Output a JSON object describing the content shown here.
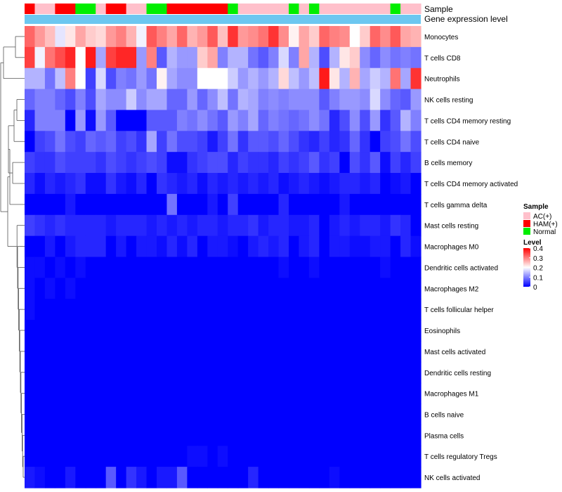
{
  "chart_data": {
    "type": "heatmap",
    "title": "",
    "annotation_labels": {
      "sample": "Sample",
      "gene": "Gene expression level"
    },
    "legend_sample": {
      "title": "Sample",
      "items": [
        "AC(+)",
        "HAM(+)",
        "Normal"
      ],
      "colors": {
        "AC(+)": "#FFC0CB",
        "HAM(+)": "#FF0000",
        "Normal": "#00EE00"
      }
    },
    "legend_level": {
      "title": "Level",
      "ticks": [
        0.4,
        0.3,
        0.2,
        0.1,
        0
      ],
      "range": [
        0,
        0.4
      ],
      "colors": [
        "#0000FF",
        "#FFFFFF",
        "#FF0000"
      ]
    },
    "gene_bar_color": "#6CC7F0",
    "sample_groups": [
      "HAM(+)",
      "AC(+)",
      "AC(+)",
      "HAM(+)",
      "HAM(+)",
      "Normal",
      "Normal",
      "AC(+)",
      "HAM(+)",
      "HAM(+)",
      "AC(+)",
      "AC(+)",
      "Normal",
      "Normal",
      "HAM(+)",
      "HAM(+)",
      "HAM(+)",
      "HAM(+)",
      "HAM(+)",
      "HAM(+)",
      "Normal",
      "AC(+)",
      "AC(+)",
      "AC(+)",
      "AC(+)",
      "AC(+)",
      "Normal",
      "AC(+)",
      "Normal",
      "AC(+)",
      "AC(+)",
      "AC(+)",
      "AC(+)",
      "AC(+)",
      "AC(+)",
      "AC(+)",
      "Normal",
      "AC(+)",
      "AC(+)"
    ],
    "rows": [
      "Monocytes",
      "T cells CD8",
      "Neutrophils",
      "NK cells resting",
      "T cells CD4 memory resting",
      "T cells CD4 naive",
      "B cells memory",
      "T cells CD4 memory activated",
      "T cells gamma delta",
      "Mast cells resting",
      "Macrophages M0",
      "Dendritic cells activated",
      "Macrophages M2",
      "T cells follicular helper",
      "Eosinophils",
      "Mast cells activated",
      "Dendritic cells resting",
      "Macrophages M1",
      "B cells naive",
      "Plasma cells",
      "T cells regulatory  Tregs",
      "NK cells activated"
    ],
    "values": [
      [
        0.32,
        0.28,
        0.25,
        0.18,
        0.22,
        0.27,
        0.24,
        0.23,
        0.28,
        0.3,
        0.26,
        0.19,
        0.33,
        0.3,
        0.27,
        0.32,
        0.26,
        0.28,
        0.33,
        0.25,
        0.36,
        0.28,
        0.29,
        0.31,
        0.36,
        0.29,
        0.21,
        0.27,
        0.24,
        0.32,
        0.3,
        0.29,
        0.2,
        0.24,
        0.32,
        0.29,
        0.33,
        0.27,
        0.26
      ],
      [
        0.35,
        0.19,
        0.31,
        0.34,
        0.37,
        0.2,
        0.38,
        0.13,
        0.35,
        0.37,
        0.37,
        0.12,
        0.3,
        0.07,
        0.14,
        0.12,
        0.12,
        0.24,
        0.27,
        0.1,
        0.14,
        0.14,
        0.09,
        0.07,
        0.1,
        0.17,
        0.1,
        0.27,
        0.14,
        0.06,
        0.14,
        0.22,
        0.24,
        0.11,
        0.08,
        0.11,
        0.09,
        0.1,
        0.09
      ],
      [
        0.14,
        0.14,
        0.09,
        0.15,
        0.3,
        0.2,
        0.05,
        0.17,
        0.06,
        0.1,
        0.09,
        0.12,
        0.09,
        0.21,
        0.13,
        0.11,
        0.11,
        0.2,
        0.2,
        0.2,
        0.16,
        0.12,
        0.14,
        0.12,
        0.14,
        0.23,
        0.15,
        0.12,
        0.15,
        0.38,
        0.22,
        0.14,
        0.26,
        0.13,
        0.16,
        0.14,
        0.31,
        0.13,
        0.36
      ],
      [
        0.08,
        0.1,
        0.1,
        0.08,
        0.06,
        0.1,
        0.06,
        0.13,
        0.11,
        0.11,
        0.16,
        0.11,
        0.13,
        0.13,
        0.08,
        0.08,
        0.12,
        0.08,
        0.11,
        0.15,
        0.09,
        0.14,
        0.13,
        0.1,
        0.11,
        0.1,
        0.11,
        0.11,
        0.11,
        0.07,
        0.1,
        0.12,
        0.12,
        0.11,
        0.17,
        0.11,
        0.08,
        0.07,
        0.12
      ],
      [
        0.03,
        0.1,
        0.1,
        0.1,
        0.0,
        0.12,
        0.01,
        0.12,
        0.07,
        0.0,
        0.0,
        0.0,
        0.07,
        0.07,
        0.07,
        0.1,
        0.09,
        0.11,
        0.09,
        0.07,
        0.12,
        0.1,
        0.13,
        0.08,
        0.1,
        0.09,
        0.08,
        0.09,
        0.11,
        0.09,
        0.03,
        0.06,
        0.11,
        0.06,
        0.12,
        0.04,
        0.07,
        0.14,
        0.1
      ],
      [
        0.0,
        0.05,
        0.06,
        0.09,
        0.06,
        0.05,
        0.08,
        0.07,
        0.08,
        0.05,
        0.06,
        0.04,
        0.13,
        0.05,
        0.09,
        0.06,
        0.06,
        0.05,
        0.02,
        0.05,
        0.09,
        0.04,
        0.07,
        0.07,
        0.06,
        0.08,
        0.06,
        0.04,
        0.03,
        0.05,
        0.03,
        0.04,
        0.08,
        0.04,
        0.0,
        0.05,
        0.06,
        0.09,
        0.06
      ],
      [
        0.05,
        0.04,
        0.04,
        0.06,
        0.05,
        0.05,
        0.05,
        0.04,
        0.06,
        0.05,
        0.04,
        0.05,
        0.06,
        0.05,
        0.01,
        0.01,
        0.04,
        0.05,
        0.06,
        0.06,
        0.03,
        0.05,
        0.04,
        0.04,
        0.03,
        0.05,
        0.04,
        0.05,
        0.07,
        0.04,
        0.05,
        0.0,
        0.06,
        0.04,
        0.07,
        0.01,
        0.05,
        0.03,
        0.05
      ],
      [
        0.03,
        0.01,
        0.03,
        0.02,
        0.03,
        0.04,
        0.01,
        0.01,
        0.04,
        0.02,
        0.01,
        0.03,
        0.0,
        0.04,
        0.03,
        0.02,
        0.03,
        0.01,
        0.03,
        0.02,
        0.03,
        0.02,
        0.03,
        0.02,
        0.03,
        0.01,
        0.02,
        0.03,
        0.02,
        0.01,
        0.02,
        0.03,
        0.03,
        0.02,
        0.03,
        0.0,
        0.01,
        0.02,
        0.0
      ],
      [
        0.0,
        0.0,
        0.0,
        0.0,
        0.02,
        0.0,
        0.0,
        0.0,
        0.0,
        0.0,
        0.0,
        0.0,
        0.0,
        0.0,
        0.09,
        0.0,
        0.0,
        0.0,
        0.02,
        0.0,
        0.05,
        0.0,
        0.0,
        0.0,
        0.0,
        0.03,
        0.0,
        0.0,
        0.0,
        0.0,
        0.0,
        0.02,
        0.0,
        0.0,
        0.0,
        0.0,
        0.0,
        0.0,
        0.0
      ],
      [
        0.05,
        0.04,
        0.03,
        0.04,
        0.03,
        0.03,
        0.03,
        0.03,
        0.02,
        0.03,
        0.03,
        0.03,
        0.02,
        0.03,
        0.02,
        0.03,
        0.02,
        0.03,
        0.03,
        0.02,
        0.03,
        0.03,
        0.04,
        0.02,
        0.03,
        0.03,
        0.02,
        0.02,
        0.03,
        0.0,
        0.02,
        0.03,
        0.02,
        0.03,
        0.03,
        0.02,
        0.04,
        0.03,
        0.0
      ],
      [
        0.0,
        0.0,
        0.02,
        0.0,
        0.02,
        0.03,
        0.03,
        0.03,
        0.0,
        0.02,
        0.0,
        0.02,
        0.02,
        0.01,
        0.03,
        0.01,
        0.03,
        0.0,
        0.02,
        0.02,
        0.01,
        0.0,
        0.02,
        0.03,
        0.02,
        0.03,
        0.0,
        0.02,
        0.03,
        0.0,
        0.02,
        0.02,
        0.01,
        0.01,
        0.02,
        0.02,
        0.0,
        0.03,
        0.01
      ],
      [
        0.01,
        0.01,
        0.0,
        0.01,
        0.0,
        0.01,
        0.0,
        0.0,
        0.0,
        0.0,
        0.0,
        0.0,
        0.0,
        0.0,
        0.0,
        0.0,
        0.0,
        0.0,
        0.0,
        0.0,
        0.0,
        0.0,
        0.0,
        0.0,
        0.0,
        0.01,
        0.0,
        0.0,
        0.01,
        0.0,
        0.0,
        0.0,
        0.0,
        0.0,
        0.0,
        0.01,
        0.0,
        0.0,
        0.0
      ],
      [
        0.01,
        0.0,
        0.01,
        0.0,
        0.01,
        0.0,
        0.0,
        0.0,
        0.0,
        0.0,
        0.0,
        0.0,
        0.0,
        0.0,
        0.0,
        0.0,
        0.0,
        0.0,
        0.0,
        0.0,
        0.0,
        0.0,
        0.0,
        0.0,
        0.0,
        0.0,
        0.0,
        0.0,
        0.0,
        0.0,
        0.0,
        0.0,
        0.0,
        0.0,
        0.0,
        0.0,
        0.0,
        0.0,
        0.0
      ],
      [
        0.01,
        0.0,
        0.0,
        0.0,
        0.0,
        0.0,
        0.0,
        0.0,
        0.0,
        0.0,
        0.0,
        0.0,
        0.0,
        0.0,
        0.0,
        0.0,
        0.0,
        0.0,
        0.0,
        0.0,
        0.0,
        0.0,
        0.0,
        0.0,
        0.0,
        0.0,
        0.0,
        0.0,
        0.0,
        0.0,
        0.0,
        0.0,
        0.0,
        0.0,
        0.0,
        0.0,
        0.0,
        0.0,
        0.0
      ],
      [
        0.0,
        0.0,
        0.0,
        0.0,
        0.0,
        0.0,
        0.0,
        0.0,
        0.0,
        0.0,
        0.0,
        0.0,
        0.0,
        0.0,
        0.0,
        0.0,
        0.0,
        0.0,
        0.0,
        0.0,
        0.0,
        0.0,
        0.0,
        0.0,
        0.0,
        0.0,
        0.0,
        0.0,
        0.0,
        0.0,
        0.0,
        0.0,
        0.0,
        0.0,
        0.0,
        0.0,
        0.0,
        0.0,
        0.0
      ],
      [
        0.0,
        0.0,
        0.0,
        0.0,
        0.0,
        0.0,
        0.0,
        0.0,
        0.0,
        0.0,
        0.0,
        0.0,
        0.0,
        0.0,
        0.0,
        0.0,
        0.0,
        0.0,
        0.0,
        0.0,
        0.0,
        0.0,
        0.0,
        0.0,
        0.0,
        0.0,
        0.0,
        0.0,
        0.0,
        0.0,
        0.0,
        0.0,
        0.0,
        0.0,
        0.0,
        0.0,
        0.0,
        0.0,
        0.0
      ],
      [
        0.0,
        0.0,
        0.0,
        0.0,
        0.0,
        0.0,
        0.0,
        0.0,
        0.0,
        0.0,
        0.0,
        0.0,
        0.0,
        0.0,
        0.0,
        0.0,
        0.0,
        0.0,
        0.0,
        0.0,
        0.0,
        0.0,
        0.0,
        0.0,
        0.0,
        0.0,
        0.0,
        0.0,
        0.0,
        0.0,
        0.0,
        0.0,
        0.0,
        0.0,
        0.0,
        0.0,
        0.0,
        0.0,
        0.0
      ],
      [
        0.0,
        0.0,
        0.0,
        0.0,
        0.0,
        0.0,
        0.0,
        0.0,
        0.0,
        0.0,
        0.0,
        0.0,
        0.0,
        0.0,
        0.0,
        0.0,
        0.0,
        0.0,
        0.0,
        0.0,
        0.0,
        0.0,
        0.0,
        0.0,
        0.0,
        0.0,
        0.0,
        0.0,
        0.0,
        0.0,
        0.0,
        0.0,
        0.0,
        0.0,
        0.0,
        0.0,
        0.0,
        0.0,
        0.0
      ],
      [
        0.0,
        0.0,
        0.0,
        0.0,
        0.0,
        0.0,
        0.0,
        0.0,
        0.0,
        0.0,
        0.0,
        0.0,
        0.0,
        0.0,
        0.0,
        0.0,
        0.0,
        0.0,
        0.0,
        0.0,
        0.0,
        0.0,
        0.0,
        0.0,
        0.0,
        0.0,
        0.0,
        0.0,
        0.0,
        0.0,
        0.0,
        0.0,
        0.0,
        0.0,
        0.0,
        0.0,
        0.0,
        0.0,
        0.0
      ],
      [
        0.0,
        0.0,
        0.0,
        0.0,
        0.0,
        0.0,
        0.0,
        0.0,
        0.0,
        0.0,
        0.0,
        0.0,
        0.0,
        0.0,
        0.0,
        0.0,
        0.0,
        0.0,
        0.0,
        0.0,
        0.0,
        0.0,
        0.0,
        0.0,
        0.0,
        0.0,
        0.0,
        0.0,
        0.0,
        0.0,
        0.0,
        0.0,
        0.0,
        0.0,
        0.0,
        0.0,
        0.0,
        0.0,
        0.0
      ],
      [
        0.0,
        0.0,
        0.0,
        0.0,
        0.0,
        0.0,
        0.0,
        0.0,
        0.0,
        0.0,
        0.0,
        0.0,
        0.0,
        0.0,
        0.0,
        0.0,
        0.01,
        0.01,
        0.0,
        0.01,
        0.0,
        0.0,
        0.0,
        0.0,
        0.0,
        0.0,
        0.0,
        0.0,
        0.0,
        0.0,
        0.0,
        0.0,
        0.0,
        0.0,
        0.0,
        0.0,
        0.0,
        0.0,
        0.0
      ],
      [
        0.02,
        0.01,
        0.0,
        0.0,
        0.02,
        0.0,
        0.0,
        0.0,
        0.07,
        0.0,
        0.04,
        0.02,
        0.0,
        0.02,
        0.02,
        0.07,
        0.0,
        0.0,
        0.0,
        0.0,
        0.0,
        0.0,
        0.03,
        0.0,
        0.0,
        0.0,
        0.0,
        0.0,
        0.0,
        0.0,
        0.01,
        0.0,
        0.0,
        0.0,
        0.0,
        0.0,
        0.0,
        0.0,
        0.0
      ]
    ]
  }
}
